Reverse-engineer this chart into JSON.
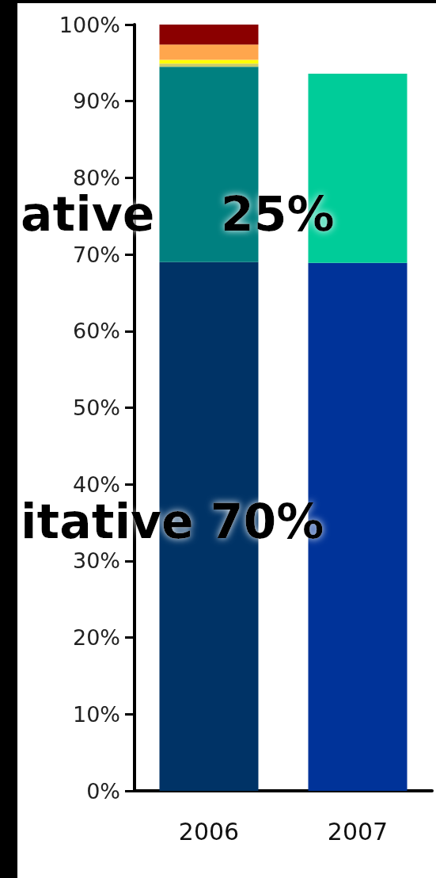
{
  "chart_data": {
    "type": "bar",
    "stacked": true,
    "categories": [
      "2006",
      "2007"
    ],
    "series": [
      {
        "colors": [
          "#003366",
          "#003399"
        ],
        "values": [
          69,
          68.9
        ]
      },
      {
        "colors": [
          "#008080",
          "#00cc99"
        ],
        "values": [
          25.5,
          24.7
        ]
      },
      {
        "colors": [
          "#cccc66",
          null
        ],
        "values": [
          0.4,
          null
        ]
      },
      {
        "colors": [
          "#ffff00",
          null
        ],
        "values": [
          0.5,
          null
        ]
      },
      {
        "colors": [
          "#ffa64d",
          null
        ],
        "values": [
          2,
          null
        ]
      },
      {
        "colors": [
          "#8b0000",
          null
        ],
        "values": [
          2.6,
          null
        ]
      }
    ],
    "ylim": [
      0,
      100
    ],
    "yticks": [
      {
        "value": 0,
        "label": "0%"
      },
      {
        "value": 10,
        "label": "10%"
      },
      {
        "value": 20,
        "label": "20%"
      },
      {
        "value": 30,
        "label": "30%"
      },
      {
        "value": 40,
        "label": "40%"
      },
      {
        "value": 50,
        "label": "50%"
      },
      {
        "value": 60,
        "label": "60%"
      },
      {
        "value": 70,
        "label": "70%"
      },
      {
        "value": 80,
        "label": "80%"
      },
      {
        "value": 90,
        "label": "90%"
      },
      {
        "value": 100,
        "label": "100%"
      }
    ],
    "grid": false,
    "annotations": [
      "ative    25%",
      "itative 70%"
    ]
  }
}
